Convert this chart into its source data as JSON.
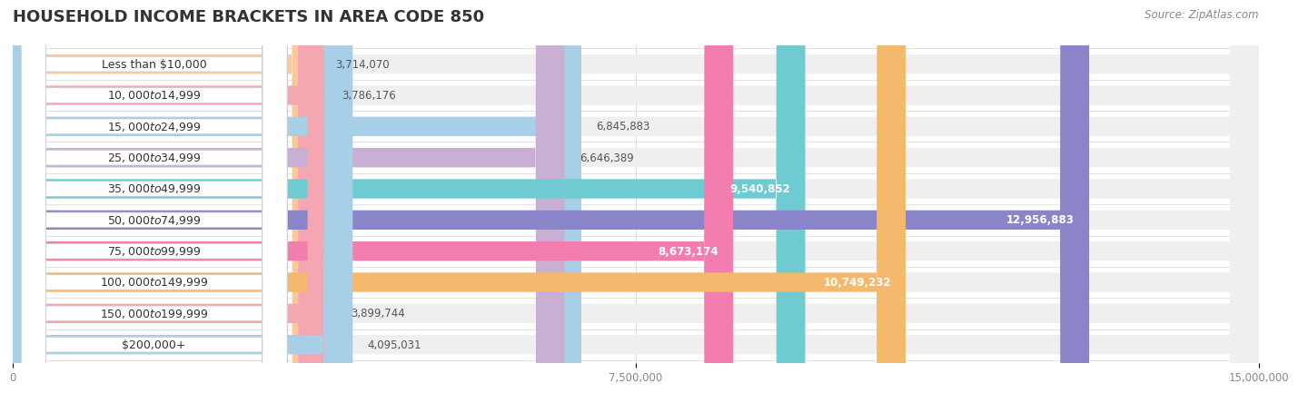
{
  "title": "HOUSEHOLD INCOME BRACKETS IN AREA CODE 850",
  "source": "Source: ZipAtlas.com",
  "categories": [
    "Less than $10,000",
    "$10,000 to $14,999",
    "$15,000 to $24,999",
    "$25,000 to $34,999",
    "$35,000 to $49,999",
    "$50,000 to $74,999",
    "$75,000 to $99,999",
    "$100,000 to $149,999",
    "$150,000 to $199,999",
    "$200,000+"
  ],
  "values": [
    3714070,
    3786176,
    6845883,
    6646389,
    9540852,
    12956883,
    8673174,
    10749232,
    3899744,
    4095031
  ],
  "bar_colors": [
    "#f9c89b",
    "#f4a7b0",
    "#a8cfe8",
    "#c9afd4",
    "#6ecbd1",
    "#8a85c8",
    "#f47db0",
    "#f5b96e",
    "#f4a7b0",
    "#a8cfe8"
  ],
  "xlim": [
    0,
    15000000
  ],
  "xticks": [
    0,
    7500000,
    15000000
  ],
  "xtick_labels": [
    "0",
    "7,500,000",
    "15,000,000"
  ],
  "bg_color": "#ffffff",
  "bar_bg_color": "#efefef",
  "title_fontsize": 13,
  "label_fontsize": 9,
  "value_fontsize": 8.5,
  "source_fontsize": 8.5,
  "value_inside_threshold": 8500000,
  "value_inside_color": "#ffffff",
  "value_outside_color": "#555555"
}
